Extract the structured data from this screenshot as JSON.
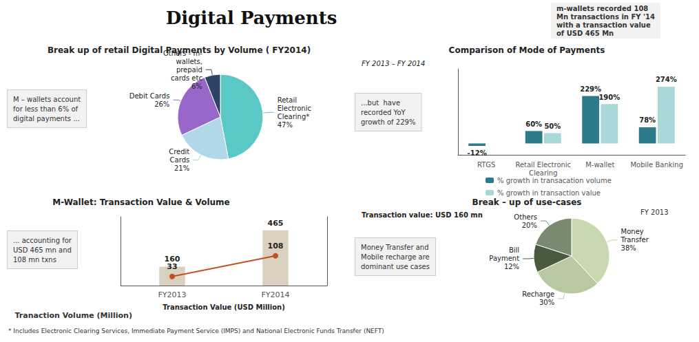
{
  "title": "Digital Payments",
  "annotations": [
    "m-wallets recorded 108\nMn transactions in FY '14\nwith a transaction value\nof USD 465 Mn",
    "   Tranaction Volume (Million)",
    "* Includes Electronic Clearing Services, Immediate Payment Service (IMPS) and National Electronic Funds Transfer (NEFT)"
  ],
  "chart_data": [
    {
      "type": "pie",
      "title": "Break up of retail Digital Payments by Volume ( FY2014)",
      "categories": [
        "Retail\nElectronic\nClearing*",
        "Credit\nCards",
        "Debit Cards",
        "Others - m-\nwallets,\nprepaid\ncards etc"
      ],
      "values": [
        47,
        21,
        26,
        6
      ],
      "value_labels": [
        "47%",
        "21%",
        "26%",
        "6%"
      ],
      "colors": [
        "#5bc8c8",
        "#b0d8e8",
        "#9966cc",
        "#2d4466"
      ],
      "data_labels": true,
      "annotations": [
        "M – wallets account\nfor less than 6% of\ndigital payments ..."
      ]
    },
    {
      "type": "bar",
      "title": "Comparison of Mode of Payments",
      "subtitle": "FY 2013 – FY 2014",
      "categories": [
        "RTGS",
        "Retail Electronic\nClearing",
        "M-wallet",
        "Mobile Banking"
      ],
      "series": [
        {
          "name": "% growth in transacation volume",
          "color": "#2d7a8a",
          "values": [
            -12,
            60,
            229,
            78
          ],
          "value_labels": [
            "-12%",
            "60%",
            "229%",
            "78%"
          ]
        },
        {
          "name": "% growth in transaction value",
          "color": "#a8d8d8",
          "values": [
            0,
            50,
            190,
            274
          ],
          "value_labels": [
            null,
            "50%",
            "190%",
            "274%"
          ]
        }
      ],
      "ylim": [
        -55,
        360
      ],
      "tick_labels": "x",
      "legend": "bottom",
      "data_labels": true,
      "annotations": [
        "...but  have\nrecorded YoY\ngrowth of 229%"
      ]
    },
    {
      "type": "bar",
      "title": "M-Wallet: Transaction Value & Volume",
      "xlabel": "Transaction Value (USD Million)",
      "categories": [
        "FY2013",
        "FY2014"
      ],
      "series": [
        {
          "type": "bar",
          "color": "#d9d0c0",
          "values": [
            160,
            465
          ]
        },
        {
          "type": "line",
          "axis": "y2",
          "color": "#c05020",
          "marker": "circle",
          "values": [
            33,
            108
          ]
        }
      ],
      "ylim": [
        0,
        580
      ],
      "y2lim": [
        0,
        250
      ],
      "tick_labels": "x",
      "data_labels": true,
      "annotations": [
        "... accounting for\nUSD 465 mn and\n108 mn txns"
      ]
    },
    {
      "type": "pie",
      "title": "Break – up of use-cases",
      "subtitle": "Transaction value: USD 160 mn",
      "categories": [
        "Money\nTransfer",
        "Recharge",
        "Bill\nPayment",
        "Others"
      ],
      "values": [
        38,
        30,
        12,
        20
      ],
      "value_labels": [
        "38%",
        "30%",
        "12%",
        "20%"
      ],
      "colors": [
        "#c8d8b0",
        "#b8c8a0",
        "#4a5a40",
        "#7a8a70"
      ],
      "data_labels": true,
      "annotations": [
        "FY 2013",
        "Money Transfer and\nMobile recharge are\ndominant use cases"
      ]
    }
  ]
}
